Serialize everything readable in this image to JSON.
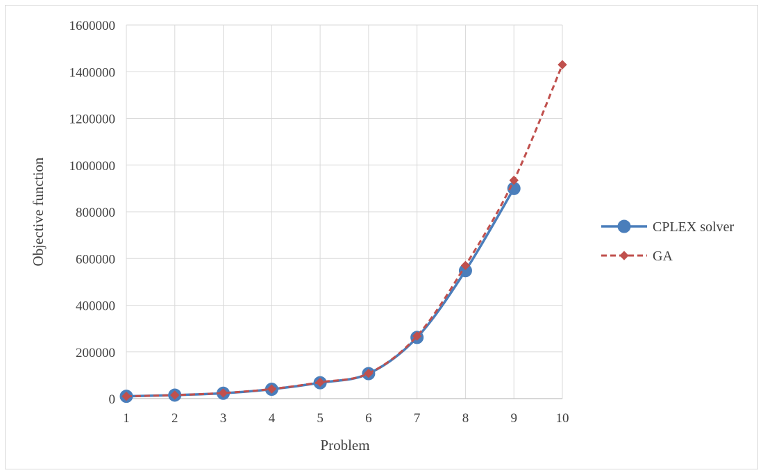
{
  "chart_data": {
    "type": "line",
    "title": "",
    "xlabel": "Problem",
    "ylabel": "Objective function",
    "x": [
      1,
      2,
      3,
      4,
      5,
      6,
      7,
      8,
      9,
      10
    ],
    "ylim": [
      0,
      1600000
    ],
    "yticks": [
      "0",
      "200000",
      "400000",
      "600000",
      "800000",
      "1000000",
      "1200000",
      "1400000",
      "1600000"
    ],
    "xticks": [
      "1",
      "2",
      "3",
      "4",
      "5",
      "6",
      "7",
      "8",
      "9",
      "10"
    ],
    "grid": true,
    "legend_position": "right",
    "series": [
      {
        "name": "CPLEX solver",
        "color": "#4a7ebb",
        "line_style": "solid",
        "marker": "circle",
        "values": [
          10000,
          15000,
          23000,
          40000,
          68000,
          107000,
          262000,
          548000,
          900000,
          null
        ]
      },
      {
        "name": "GA",
        "color": "#c0504d",
        "line_style": "dashed",
        "marker": "diamond",
        "values": [
          10000,
          15000,
          24000,
          41000,
          70000,
          108000,
          268000,
          570000,
          935000,
          1430000
        ]
      }
    ]
  }
}
